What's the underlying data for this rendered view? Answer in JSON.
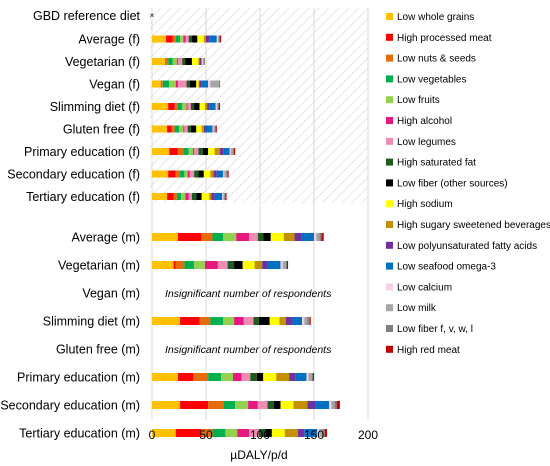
{
  "chart_data": {
    "type": "bar",
    "orientation": "horizontal",
    "stacked": true,
    "xlabel": "µDALY/p/d",
    "xlim": [
      0,
      200
    ],
    "xticks": [
      0,
      50,
      100,
      150,
      200
    ],
    "grid": true,
    "legend_position": "right",
    "female_hatched_background": true,
    "reference_label": "GBD reference diet",
    "reference_marker": "×",
    "components": [
      {
        "name": "Low whole grains",
        "color": "#ffc000"
      },
      {
        "name": "High processed meat",
        "color": "#ff0000"
      },
      {
        "name": "Low nuts & seeds",
        "color": "#e46c0a"
      },
      {
        "name": "Low vegetables",
        "color": "#00b050"
      },
      {
        "name": "Low fruits",
        "color": "#92d050"
      },
      {
        "name": "High alcohol",
        "color": "#e6187f"
      },
      {
        "name": "Low legumes",
        "color": "#f08cb4"
      },
      {
        "name": "High saturated fat",
        "color": "#1e5b1e"
      },
      {
        "name": "Low fiber (other sources)",
        "color": "#000000"
      },
      {
        "name": "High sodium",
        "color": "#ffff00"
      },
      {
        "name": "High sugary sweetened beverages",
        "color": "#c59000"
      },
      {
        "name": "Low polyunsaturated fatty acids",
        "color": "#7030a0"
      },
      {
        "name": "Low seafood omega-3",
        "color": "#0070c0"
      },
      {
        "name": "Low calcium",
        "color": "#f5d0e6"
      },
      {
        "name": "Low milk",
        "color": "#a6a6a6"
      },
      {
        "name": "Low fiber f, v, w, l",
        "color": "#7f7f7f"
      },
      {
        "name": "High red meat",
        "color": "#c00000"
      }
    ],
    "female": [
      {
        "label": "Average (f)",
        "values": [
          13,
          6,
          3,
          4,
          3,
          2,
          3,
          3,
          5,
          6,
          2,
          3,
          7,
          1,
          1,
          1,
          1
        ]
      },
      {
        "label": "Vegetarian (f)",
        "values": [
          12,
          0,
          3,
          4,
          4,
          1,
          4,
          3,
          6,
          6,
          1,
          2,
          0,
          1,
          1,
          1,
          0
        ]
      },
      {
        "label": "Vegan (f)",
        "values": [
          8,
          0,
          2,
          6,
          6,
          2,
          8,
          3,
          6,
          2,
          1,
          2,
          6,
          2,
          8,
          1,
          0
        ]
      },
      {
        "label": "Slimming diet (f)",
        "values": [
          15,
          6,
          3,
          4,
          4,
          1,
          3,
          3,
          5,
          5,
          2,
          2,
          6,
          1,
          1,
          1,
          1
        ]
      },
      {
        "label": "Gluten free (f)",
        "values": [
          14,
          4,
          3,
          4,
          4,
          1,
          3,
          3,
          5,
          5,
          2,
          2,
          6,
          1,
          1,
          1,
          1
        ]
      },
      {
        "label": "Primary education (f)",
        "values": [
          16,
          8,
          5,
          5,
          4,
          1,
          4,
          4,
          5,
          6,
          5,
          3,
          6,
          1,
          2,
          1,
          1
        ]
      },
      {
        "label": "Secondary education (f)",
        "values": [
          15,
          7,
          4,
          4,
          3,
          2,
          4,
          4,
          5,
          6,
          3,
          3,
          6,
          1,
          2,
          1,
          1
        ]
      },
      {
        "label": "Tertiary education (f)",
        "values": [
          14,
          6,
          3,
          4,
          4,
          3,
          3,
          4,
          5,
          7,
          2,
          3,
          7,
          1,
          1,
          1,
          1
        ]
      }
    ],
    "male": [
      {
        "label": "Average (m)",
        "values": [
          24,
          22,
          10,
          10,
          12,
          12,
          8,
          5,
          7,
          12,
          10,
          6,
          12,
          2,
          3,
          2,
          2
        ]
      },
      {
        "label": "Vegetarian (m)",
        "values": [
          20,
          2,
          8,
          9,
          10,
          12,
          9,
          6,
          8,
          11,
          7,
          5,
          12,
          2,
          3,
          1,
          1
        ]
      },
      {
        "label": "Vegan (m)",
        "note": "Insignificant number of respondents"
      },
      {
        "label": "Slimming diet (m)",
        "values": [
          26,
          18,
          10,
          12,
          10,
          9,
          9,
          5,
          10,
          9,
          6,
          6,
          9,
          2,
          3,
          2,
          1
        ]
      },
      {
        "label": "Gluten free (m)",
        "note": "Insignificant number of respondents"
      },
      {
        "label": "Primary education (m)",
        "values": [
          24,
          14,
          14,
          12,
          11,
          8,
          8,
          6,
          6,
          12,
          12,
          6,
          10,
          2,
          3,
          1,
          1
        ]
      },
      {
        "label": "Secondary education (m)",
        "values": [
          26,
          26,
          14,
          11,
          12,
          9,
          9,
          6,
          6,
          12,
          13,
          7,
          13,
          2,
          3,
          2,
          3
        ]
      },
      {
        "label": "Tertiary education (m)",
        "values": [
          22,
          24,
          10,
          12,
          11,
          11,
          9,
          6,
          6,
          12,
          12,
          6,
          12,
          2,
          3,
          2,
          2
        ]
      }
    ]
  }
}
